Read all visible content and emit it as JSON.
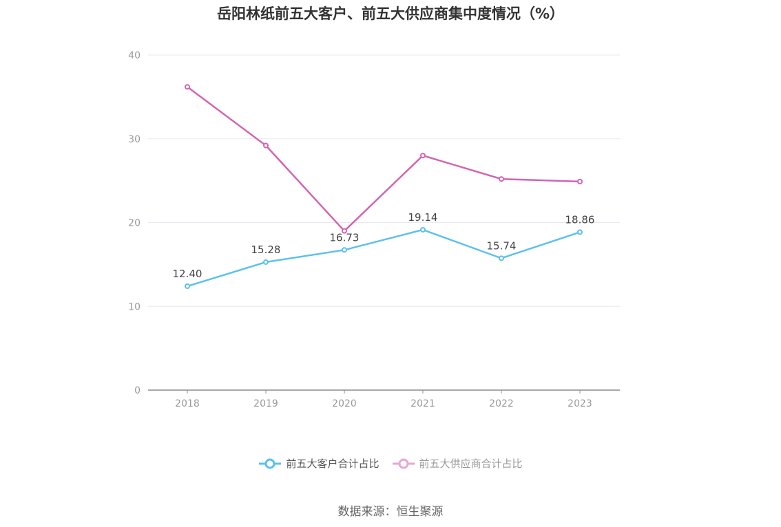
{
  "chart_data": {
    "type": "line",
    "title": "岳阳林纸前五大客户、前五大供应商集中度情况（%）",
    "categories": [
      "2018",
      "2019",
      "2020",
      "2021",
      "2022",
      "2023"
    ],
    "ylim": [
      0,
      40
    ],
    "yticks": [
      0,
      10,
      20,
      30,
      40
    ],
    "grid": true,
    "legend_position": "bottom",
    "series": [
      {
        "name": "前五大客户合计占比",
        "color": "#5bc0f0",
        "values": [
          12.4,
          15.28,
          16.73,
          19.14,
          15.74,
          18.86
        ],
        "labels": [
          "12.40",
          "15.28",
          "16.73",
          "19.14",
          "15.74",
          "18.86"
        ]
      },
      {
        "name": "前五大供应商合计占比",
        "color": "#d264b0",
        "values": [
          36.2,
          29.2,
          19.0,
          28.0,
          25.2,
          24.9
        ]
      }
    ]
  },
  "source": "数据来源：恒生聚源"
}
